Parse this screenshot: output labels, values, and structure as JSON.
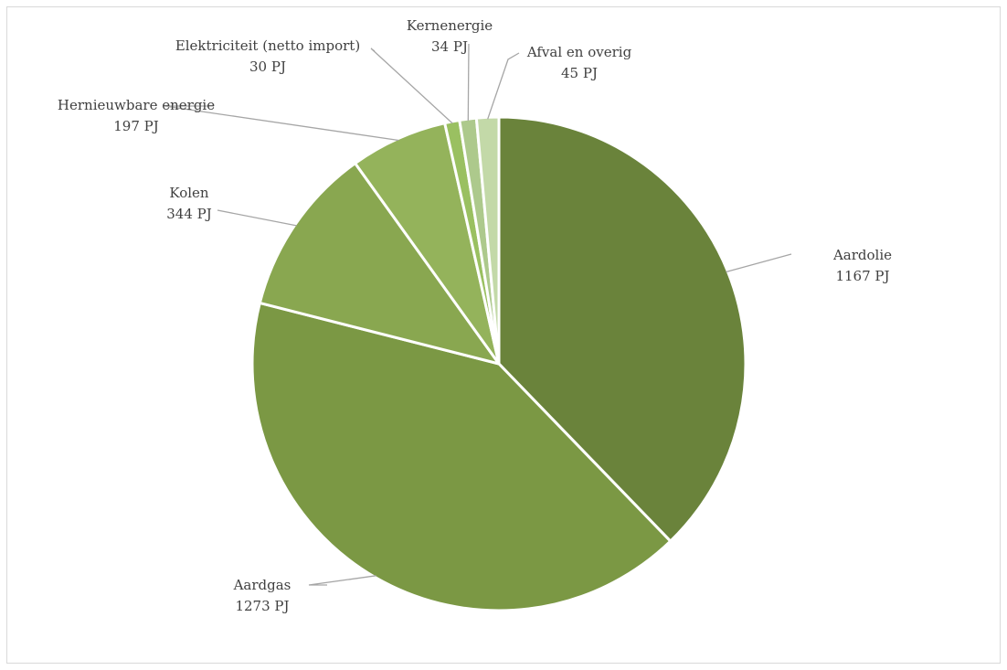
{
  "chart_data": {
    "type": "pie",
    "unit": "PJ",
    "start_angle_deg": 0,
    "direction": "clockwise",
    "legend": "none",
    "slices": [
      {
        "name": "Aardolie",
        "value": 1167,
        "value_label": "1167 PJ",
        "color": "#6a833b"
      },
      {
        "name": "Aardgas",
        "value": 1273,
        "value_label": "1273 PJ",
        "color": "#7b9844"
      },
      {
        "name": "Kolen",
        "value": 344,
        "value_label": "344 PJ",
        "color": "#89a750"
      },
      {
        "name": "Hernieuwbare energie",
        "value": 197,
        "value_label": "197 PJ",
        "color": "#94b35b"
      },
      {
        "name": "Elektriciteit (netto import)",
        "value": 30,
        "value_label": "30 PJ",
        "color": "#9ac061"
      },
      {
        "name": "Kernenergie",
        "value": 34,
        "value_label": "34 PJ",
        "color": "#adc98c"
      },
      {
        "name": "Afval en overig",
        "value": 45,
        "value_label": "45 PJ",
        "color": "#c3d9a8"
      }
    ]
  }
}
